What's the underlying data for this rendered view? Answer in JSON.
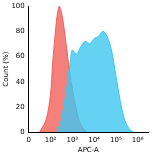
{
  "chart_data": {
    "type": "area",
    "x_label": "APC-A",
    "y_label": "Count (%)",
    "xlim": [
      0,
      3000000
    ],
    "xticks": [
      {
        "value": 0,
        "label": "0"
      },
      {
        "value": 100,
        "label": "10²"
      },
      {
        "value": 1000,
        "label": "10³"
      },
      {
        "value": 10000,
        "label": "10⁴"
      },
      {
        "value": 100000,
        "label": "10⁵"
      },
      {
        "value": 1000000,
        "label": "10⁶"
      }
    ],
    "ylim": [
      0,
      100
    ],
    "yticks": [
      0,
      20,
      40,
      60,
      80,
      100
    ],
    "grid": false,
    "series": [
      {
        "color": "#3ec6f0",
        "x": [
          200,
          316,
          501,
          794,
          1000,
          1585,
          2512,
          3981,
          6310,
          10000,
          15849,
          25119,
          39811,
          63096,
          100000,
          158489,
          251189,
          398107,
          630957
        ],
        "values": [
          0,
          10,
          30,
          55,
          65,
          62,
          68,
          72,
          70,
          74,
          76,
          80,
          76,
          65,
          45,
          25,
          10,
          3,
          0
        ]
      },
      {
        "color": "#f0605a",
        "x": [
          50,
          80,
          100,
          126,
          158,
          200,
          251,
          316,
          398,
          562,
          794,
          1259,
          1995,
          3162,
          5012
        ],
        "values": [
          0,
          10,
          30,
          55,
          75,
          92,
          100,
          95,
          85,
          65,
          45,
          25,
          10,
          3,
          0
        ]
      }
    ]
  }
}
